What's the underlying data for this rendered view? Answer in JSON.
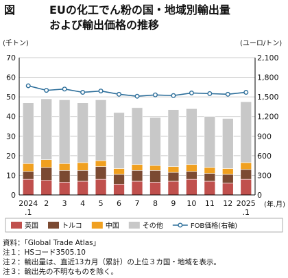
{
  "title": {
    "prefix": "図",
    "line1": "EUの化工でん粉の国・地域別輸出量",
    "line2": "および輸出価格の推移"
  },
  "chart_data": {
    "type": "bar",
    "stacked": true,
    "categories": [
      "2024\n.1",
      "2",
      "3",
      "4",
      "5",
      "6",
      "7",
      "8",
      "9",
      "10",
      "11",
      "12",
      "2025\n.1"
    ],
    "x_unit": "(年.月)",
    "y_left": {
      "unit": "(千トン)",
      "ylim": [
        0,
        70
      ],
      "ticks": [
        0,
        10,
        20,
        30,
        40,
        50,
        60,
        70
      ]
    },
    "y_right": {
      "unit": "(ユーロ/トン)",
      "ylim": [
        0,
        2100
      ],
      "ticks": [
        0,
        300,
        600,
        900,
        1200,
        1500,
        1800,
        2100
      ]
    },
    "grid": true,
    "legend_position": "bottom",
    "series": [
      {
        "name": "英国",
        "type": "bar",
        "axis": "left",
        "color": "#c0504d",
        "values": [
          8,
          7.5,
          6.5,
          7,
          8,
          5.5,
          7,
          6.5,
          7,
          8,
          7,
          6,
          8
        ]
      },
      {
        "name": "トルコ",
        "type": "bar",
        "axis": "left",
        "color": "#7b4a32",
        "values": [
          4,
          6.5,
          6,
          5.5,
          6.5,
          5,
          5.5,
          6,
          4.5,
          4,
          4,
          4.5,
          5
        ]
      },
      {
        "name": "中国",
        "type": "bar",
        "axis": "left",
        "color": "#f0a020",
        "values": [
          4,
          4,
          3.5,
          4,
          3,
          3,
          3,
          2.5,
          3,
          3.5,
          3,
          3,
          3.5
        ]
      },
      {
        "name": "その他",
        "type": "bar",
        "axis": "left",
        "color": "#c8c8c8",
        "values": [
          31,
          31,
          32.5,
          30.5,
          31,
          28.5,
          29,
          24.5,
          29,
          28.5,
          26,
          25.5,
          31
        ]
      },
      {
        "name": "FOB価格(右軸)",
        "type": "line",
        "axis": "right",
        "color": "#2c6e9a",
        "values": [
          1670,
          1600,
          1620,
          1570,
          1590,
          1540,
          1510,
          1530,
          1520,
          1560,
          1550,
          1540,
          1570
        ]
      }
    ]
  },
  "notes": [
    "資料：「Global Trade Atlas」",
    "注１：HSコード3505.10",
    "注２：輸出量は、直近13カ月（累計）の上位３カ国・地域を表示。",
    "注３：輸出先の不明なものを除く。"
  ]
}
